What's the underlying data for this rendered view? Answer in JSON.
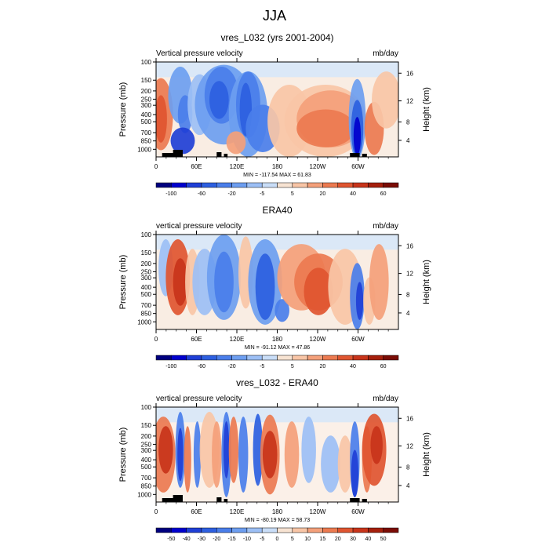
{
  "title": "JJA",
  "axis_common": {
    "pressure_ticks": [
      "100",
      "150",
      "200",
      "250",
      "300",
      "400",
      "500",
      "700",
      "850",
      "1000"
    ],
    "height_ticks": [
      "16",
      "12",
      "8",
      "4"
    ],
    "ylabel": "Pressure (mb)",
    "ylabel_right": "Height (km)",
    "x_ticks": [
      "0",
      "60E",
      "120E",
      "180",
      "120W",
      "60W"
    ]
  },
  "chart_data": [
    {
      "type": "heatmap",
      "title": "vres_L032 (yrs 2001-2004)",
      "left_label": "Vertical pressure velocity",
      "right_label": "mb/day",
      "stats": "MIN = -117.54  MAX =  61.83",
      "colorbar_labels": [
        "-100",
        "-60",
        "-20",
        "-5",
        "5",
        "20",
        "40",
        "60"
      ],
      "colorbar_levels": [
        -120,
        -100,
        -80,
        -60,
        -40,
        -20,
        -10,
        -5,
        0,
        5,
        10,
        20,
        30,
        40,
        50,
        60,
        70
      ]
    },
    {
      "type": "heatmap",
      "title": "ERA40",
      "left_label": "vertical pressure velocity",
      "right_label": "mb/day",
      "stats": "MIN = -91.12  MAX =  47.86",
      "colorbar_labels": [
        "-100",
        "-60",
        "-20",
        "-5",
        "5",
        "20",
        "40",
        "60"
      ],
      "colorbar_levels": [
        -120,
        -100,
        -80,
        -60,
        -40,
        -20,
        -10,
        -5,
        0,
        5,
        10,
        20,
        30,
        40,
        50,
        60,
        70
      ]
    },
    {
      "type": "heatmap",
      "title": "vres_L032 - ERA40",
      "left_label": "vertical pressure velocity",
      "right_label": "mb/day",
      "stats": "MIN = -80.19  MAX =  58.73",
      "colorbar_labels": [
        "-50",
        "-40",
        "-30",
        "-20",
        "-15",
        "-10",
        "-5",
        "0",
        "5",
        "10",
        "15",
        "20",
        "30",
        "40",
        "50"
      ],
      "colorbar_levels": [
        -60,
        -50,
        -40,
        -30,
        -20,
        -15,
        -10,
        -5,
        0,
        5,
        10,
        15,
        20,
        30,
        40,
        50,
        60
      ]
    }
  ],
  "colors": [
    "#00007f",
    "#0000cd",
    "#1f3fd6",
    "#2d5fe0",
    "#4a7eea",
    "#6d9ef0",
    "#9cbff5",
    "#c9ddf7",
    "#f7e3d2",
    "#f8c5a6",
    "#f4a07a",
    "#ec7a50",
    "#df5530",
    "#c8341a",
    "#a51f0c",
    "#7a0c05"
  ]
}
